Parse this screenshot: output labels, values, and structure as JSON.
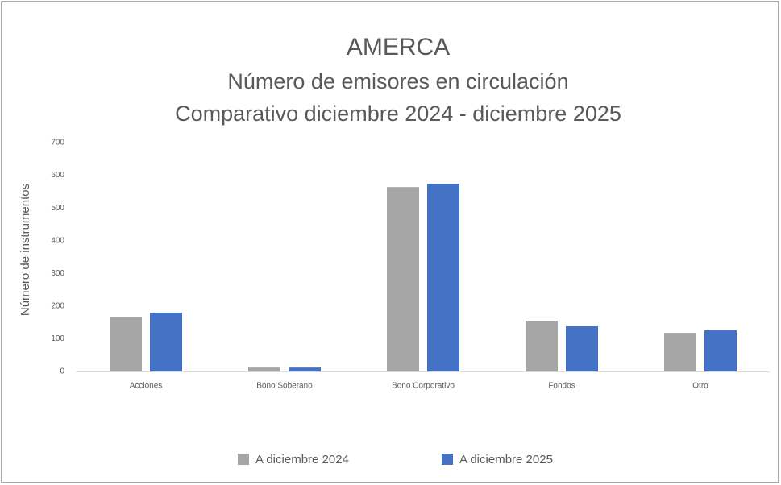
{
  "chart_data": {
    "type": "bar",
    "title": "AMERCA",
    "subtitle": [
      "Número de emisores en circulación",
      "Comparativo diciembre 2024 - diciembre 2025"
    ],
    "y_label": "Número de instrumentos",
    "categories": [
      "Acciones",
      "Bono Soberano",
      "Bono Corporativo",
      "Fondos",
      "Otro"
    ],
    "series": [
      {
        "name": "A diciembre 2024",
        "color": "#a5a5a5",
        "values": [
          167,
          12,
          564,
          155,
          118
        ]
      },
      {
        "name": "A diciembre 2025",
        "color": "#4472c4",
        "values": [
          180,
          12,
          574,
          138,
          126
        ]
      }
    ],
    "ylim": [
      0,
      700
    ],
    "yticks": [
      0,
      100,
      200,
      300,
      400,
      500,
      600,
      700
    ],
    "grid": false,
    "legend": "bottom"
  }
}
